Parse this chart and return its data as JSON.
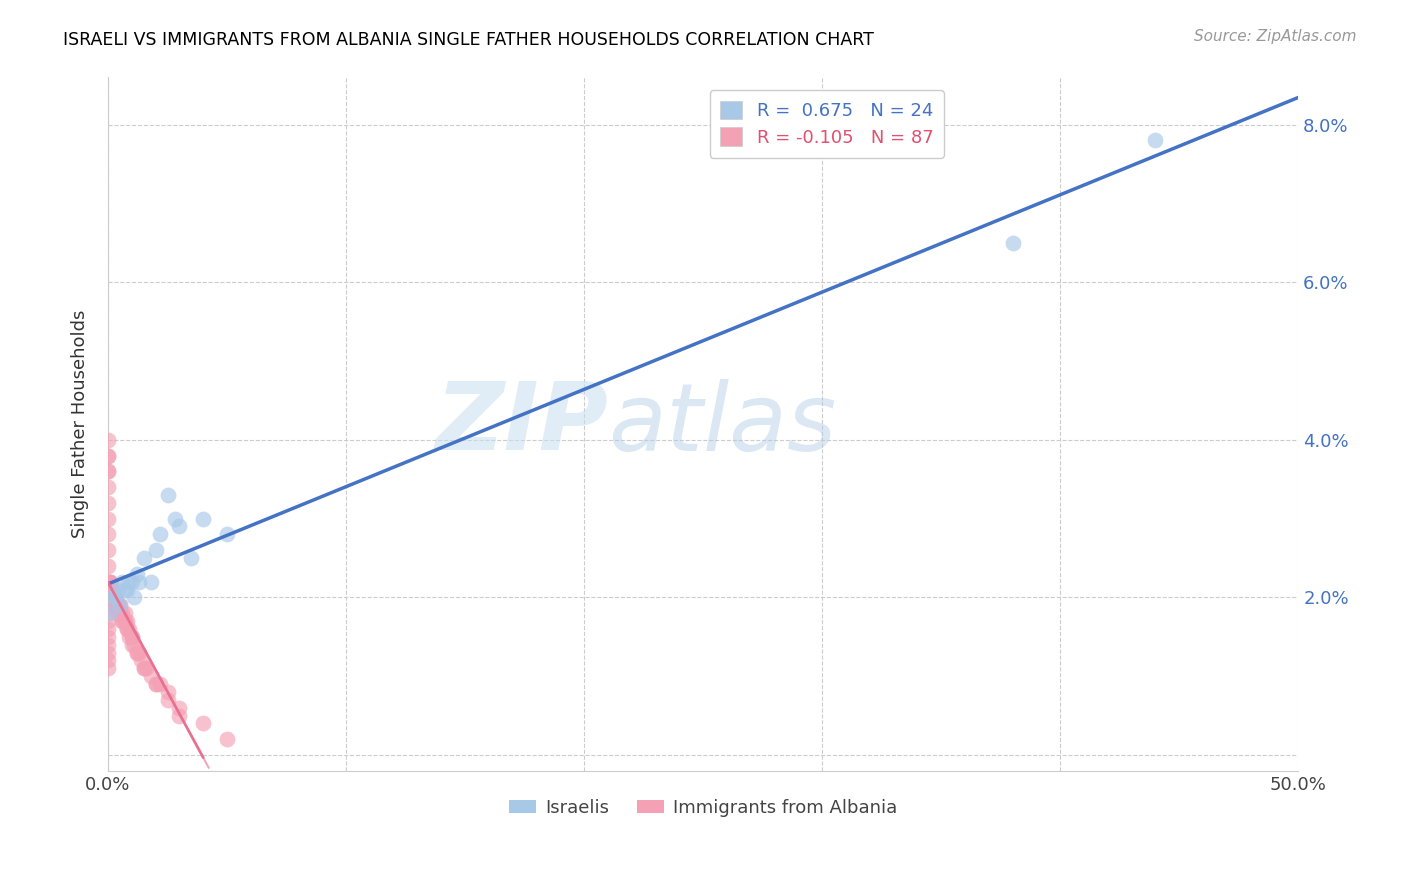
{
  "title": "ISRAELI VS IMMIGRANTS FROM ALBANIA SINGLE FATHER HOUSEHOLDS CORRELATION CHART",
  "source": "Source: ZipAtlas.com",
  "ylabel": "Single Father Households",
  "xlim": [
    0.0,
    0.5
  ],
  "ylim": [
    -0.002,
    0.086
  ],
  "color_israeli": "#a8c8e8",
  "color_albania": "#f4a0b5",
  "color_line_israeli": "#4472C4",
  "color_line_albania": "#e87090",
  "watermark_zip": "ZIP",
  "watermark_atlas": "atlas",
  "israeli_x": [
    0.001,
    0.002,
    0.003,
    0.004,
    0.005,
    0.006,
    0.007,
    0.008,
    0.009,
    0.01,
    0.011,
    0.012,
    0.013,
    0.015,
    0.018,
    0.02,
    0.022,
    0.025,
    0.028,
    0.03,
    0.035,
    0.04,
    0.05,
    0.38,
    0.44
  ],
  "israeli_y": [
    0.018,
    0.02,
    0.02,
    0.021,
    0.019,
    0.022,
    0.021,
    0.021,
    0.022,
    0.022,
    0.02,
    0.023,
    0.022,
    0.025,
    0.022,
    0.026,
    0.028,
    0.033,
    0.03,
    0.029,
    0.025,
    0.03,
    0.028,
    0.065,
    0.078
  ],
  "albania_x": [
    0.0,
    0.0,
    0.0,
    0.0,
    0.0,
    0.0,
    0.0,
    0.0,
    0.0,
    0.0,
    0.0,
    0.0,
    0.0,
    0.0,
    0.0,
    0.0,
    0.0,
    0.0,
    0.0,
    0.0,
    0.001,
    0.001,
    0.001,
    0.001,
    0.001,
    0.001,
    0.001,
    0.001,
    0.001,
    0.001,
    0.002,
    0.002,
    0.002,
    0.002,
    0.002,
    0.002,
    0.003,
    0.003,
    0.003,
    0.003,
    0.004,
    0.004,
    0.004,
    0.005,
    0.005,
    0.006,
    0.006,
    0.007,
    0.007,
    0.008,
    0.008,
    0.009,
    0.01,
    0.01,
    0.011,
    0.012,
    0.013,
    0.014,
    0.015,
    0.016,
    0.018,
    0.02,
    0.022,
    0.025,
    0.03,
    0.04,
    0.05,
    0.0,
    0.0,
    0.0,
    0.001,
    0.001,
    0.001,
    0.002,
    0.002,
    0.003,
    0.004,
    0.005,
    0.006,
    0.007,
    0.008,
    0.009,
    0.01,
    0.012,
    0.015,
    0.02,
    0.025,
    0.03
  ],
  "albania_y": [
    0.038,
    0.036,
    0.034,
    0.032,
    0.03,
    0.028,
    0.026,
    0.024,
    0.022,
    0.021,
    0.02,
    0.019,
    0.018,
    0.017,
    0.016,
    0.015,
    0.014,
    0.013,
    0.012,
    0.011,
    0.022,
    0.022,
    0.021,
    0.021,
    0.021,
    0.02,
    0.02,
    0.02,
    0.019,
    0.019,
    0.021,
    0.021,
    0.02,
    0.02,
    0.019,
    0.019,
    0.02,
    0.02,
    0.019,
    0.019,
    0.019,
    0.019,
    0.018,
    0.019,
    0.018,
    0.018,
    0.017,
    0.018,
    0.017,
    0.017,
    0.016,
    0.016,
    0.015,
    0.014,
    0.014,
    0.013,
    0.013,
    0.012,
    0.011,
    0.011,
    0.01,
    0.009,
    0.009,
    0.008,
    0.006,
    0.004,
    0.002,
    0.04,
    0.038,
    0.036,
    0.022,
    0.021,
    0.02,
    0.02,
    0.019,
    0.02,
    0.019,
    0.018,
    0.017,
    0.017,
    0.016,
    0.015,
    0.015,
    0.013,
    0.011,
    0.009,
    0.007,
    0.005
  ]
}
